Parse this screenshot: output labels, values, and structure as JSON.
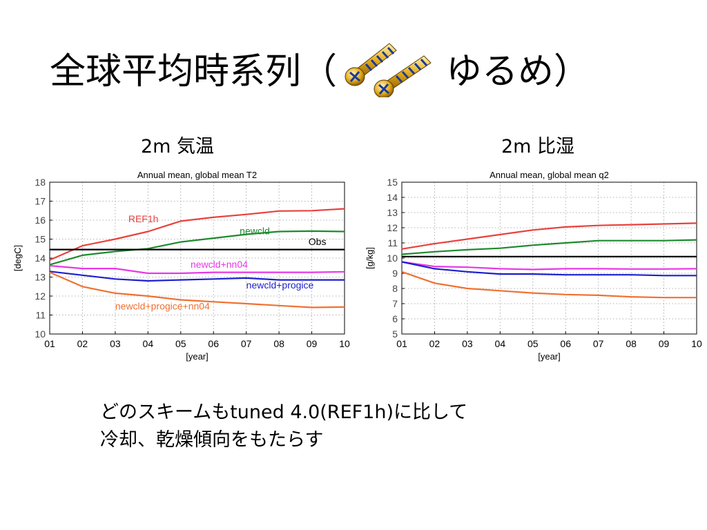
{
  "slide": {
    "title_main": "全球平均時系列（",
    "title_tail": "ゆるめ）",
    "title_icon": "screws-icon",
    "panel_left_heading": "2m 気温",
    "panel_right_heading": "2m 比湿",
    "comment_line1": "どのスキームもtuned 4.0(REF1h)に比して",
    "comment_line2": "冷却、乾燥傾向をもたらす"
  },
  "chart_data": [
    {
      "type": "line",
      "title": "Annual mean, global mean T2",
      "xlabel": "[year]",
      "ylabel": "[degC]",
      "x": [
        "01",
        "02",
        "03",
        "04",
        "05",
        "06",
        "07",
        "08",
        "09",
        "10"
      ],
      "ylim": [
        10,
        18
      ],
      "yticks": [
        "10",
        "11",
        "12",
        "13",
        "14",
        "15",
        "16",
        "17",
        "18"
      ],
      "grid": true,
      "series": [
        {
          "name": "REF1h",
          "color": "#e8413c",
          "values": [
            13.9,
            14.65,
            15.0,
            15.4,
            15.95,
            16.15,
            16.3,
            16.48,
            16.5,
            16.6
          ],
          "label_x": 2.4,
          "label_y": 15.9
        },
        {
          "name": "newcld",
          "color": "#1c8a2e",
          "values": [
            13.65,
            14.15,
            14.35,
            14.5,
            14.85,
            15.05,
            15.25,
            15.4,
            15.42,
            15.4
          ],
          "label_x": 5.8,
          "label_y": 15.25
        },
        {
          "name": "Obs",
          "color": "#000000",
          "values": [
            14.45,
            14.45,
            14.45,
            14.45,
            14.45,
            14.45,
            14.45,
            14.45,
            14.45,
            14.45
          ],
          "label_x": 7.9,
          "label_y": 14.7
        },
        {
          "name": "newcld+nn04",
          "color": "#e837e8",
          "values": [
            13.6,
            13.45,
            13.45,
            13.2,
            13.2,
            13.25,
            13.25,
            13.25,
            13.25,
            13.28
          ],
          "label_x": 4.3,
          "label_y": 13.5
        },
        {
          "name": "newcld+progice",
          "color": "#1a1fcc",
          "values": [
            13.3,
            13.1,
            12.9,
            12.8,
            12.85,
            12.9,
            12.95,
            12.85,
            12.85,
            12.85
          ],
          "label_x": 6.0,
          "label_y": 12.4
        },
        {
          "name": "newcld+progice+nn04",
          "color": "#f07030",
          "values": [
            13.25,
            12.5,
            12.15,
            12.0,
            11.8,
            11.7,
            11.6,
            11.5,
            11.4,
            11.42
          ],
          "label_x": 2.0,
          "label_y": 11.3
        }
      ]
    },
    {
      "type": "line",
      "title": "Annual mean, global mean q2",
      "xlabel": "[year]",
      "ylabel": "[g/kg]",
      "x": [
        "01",
        "02",
        "03",
        "04",
        "05",
        "06",
        "07",
        "08",
        "09",
        "10"
      ],
      "ylim": [
        5,
        15
      ],
      "yticks": [
        "5",
        "6",
        "7",
        "8",
        "9",
        "10",
        "11",
        "12",
        "13",
        "14",
        "15"
      ],
      "grid": true,
      "series": [
        {
          "name": "",
          "color": "#e8413c",
          "values": [
            10.6,
            10.95,
            11.25,
            11.55,
            11.85,
            12.05,
            12.15,
            12.2,
            12.25,
            12.3
          ]
        },
        {
          "name": "",
          "color": "#1c8a2e",
          "values": [
            10.25,
            10.42,
            10.55,
            10.65,
            10.85,
            11.0,
            11.15,
            11.15,
            11.15,
            11.2
          ]
        },
        {
          "name": "",
          "color": "#000000",
          "values": [
            10.1,
            10.1,
            10.1,
            10.1,
            10.1,
            10.1,
            10.1,
            10.1,
            10.1,
            10.1
          ]
        },
        {
          "name": "",
          "color": "#e837e8",
          "values": [
            9.75,
            9.45,
            9.4,
            9.3,
            9.25,
            9.3,
            9.3,
            9.28,
            9.28,
            9.3
          ]
        },
        {
          "name": "",
          "color": "#1a1fcc",
          "values": [
            9.75,
            9.3,
            9.1,
            8.95,
            8.95,
            8.9,
            8.9,
            8.9,
            8.85,
            8.85
          ]
        },
        {
          "name": "",
          "color": "#f07030",
          "values": [
            9.1,
            8.35,
            8.0,
            7.85,
            7.7,
            7.6,
            7.55,
            7.45,
            7.4,
            7.4
          ]
        }
      ]
    }
  ]
}
